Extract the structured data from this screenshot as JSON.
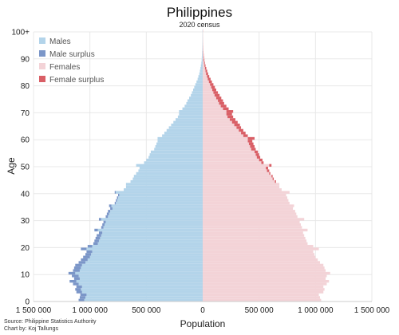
{
  "chart_data": {
    "type": "bar",
    "orientation": "horizontal-butterfly",
    "title": "Philippines",
    "subtitle": "2020 census",
    "xlabel": "Population",
    "ylabel": "Age",
    "xlim": [
      -1500000,
      1500000
    ],
    "ylim": [
      0,
      100
    ],
    "x_ticks": [
      {
        "value": -1500000,
        "label": "1 500 000"
      },
      {
        "value": -1000000,
        "label": "1 000 000"
      },
      {
        "value": -500000,
        "label": "500 000"
      },
      {
        "value": 0,
        "label": "0"
      },
      {
        "value": 500000,
        "label": "500 000"
      },
      {
        "value": 1000000,
        "label": "1 000 000"
      },
      {
        "value": 1500000,
        "label": "1 500 000"
      }
    ],
    "y_ticks": [
      {
        "value": 0,
        "label": "0"
      },
      {
        "value": 10,
        "label": "10"
      },
      {
        "value": 20,
        "label": "20"
      },
      {
        "value": 30,
        "label": "30"
      },
      {
        "value": 40,
        "label": "40"
      },
      {
        "value": 50,
        "label": "50"
      },
      {
        "value": 60,
        "label": "60"
      },
      {
        "value": 70,
        "label": "70"
      },
      {
        "value": 80,
        "label": "80"
      },
      {
        "value": 90,
        "label": "90"
      },
      {
        "value": 100,
        "label": "100+"
      }
    ],
    "grid": true,
    "legend_position": "top-left",
    "legend": [
      {
        "name": "Males",
        "color": "#b3d4ea"
      },
      {
        "name": "Male surplus",
        "color": "#7b96c8"
      },
      {
        "name": "Females",
        "color": "#f3d3d7"
      },
      {
        "name": "Female surplus",
        "color": "#d95f66"
      }
    ],
    "ages": [
      0,
      1,
      2,
      3,
      4,
      5,
      6,
      7,
      8,
      9,
      10,
      11,
      12,
      13,
      14,
      15,
      16,
      17,
      18,
      19,
      20,
      21,
      22,
      23,
      24,
      25,
      26,
      27,
      28,
      29,
      30,
      31,
      32,
      33,
      34,
      35,
      36,
      37,
      38,
      39,
      40,
      41,
      42,
      43,
      44,
      45,
      46,
      47,
      48,
      49,
      50,
      51,
      52,
      53,
      54,
      55,
      56,
      57,
      58,
      59,
      60,
      61,
      62,
      63,
      64,
      65,
      66,
      67,
      68,
      69,
      70,
      71,
      72,
      73,
      74,
      75,
      76,
      77,
      78,
      79,
      80,
      81,
      82,
      83,
      84,
      85,
      86,
      87,
      88,
      89,
      90,
      91,
      92,
      93,
      94,
      95,
      96,
      97,
      98,
      99,
      100
    ],
    "series": [
      {
        "name": "Males",
        "values": [
          1100000,
          1090000,
          1085000,
          1120000,
          1130000,
          1120000,
          1150000,
          1180000,
          1140000,
          1160000,
          1190000,
          1150000,
          1140000,
          1130000,
          1100000,
          1080000,
          1060000,
          1040000,
          1030000,
          1080000,
          1020000,
          970000,
          960000,
          950000,
          940000,
          920000,
          960000,
          900000,
          890000,
          880000,
          920000,
          860000,
          850000,
          840000,
          820000,
          830000,
          780000,
          770000,
          760000,
          750000,
          780000,
          700000,
          680000,
          680000,
          640000,
          620000,
          610000,
          590000,
          570000,
          560000,
          590000,
          520000,
          500000,
          480000,
          470000,
          460000,
          430000,
          420000,
          410000,
          400000,
          400000,
          360000,
          340000,
          320000,
          300000,
          280000,
          260000,
          240000,
          220000,
          210000,
          210000,
          180000,
          160000,
          145000,
          135000,
          120000,
          105000,
          95000,
          85000,
          75000,
          65000,
          55000,
          45000,
          38000,
          30000,
          25000,
          20000,
          16000,
          12000,
          9000,
          8000,
          6000,
          4500,
          3500,
          2500,
          2000,
          1500,
          1200,
          1000,
          800,
          2000
        ]
      },
      {
        "name": "Females",
        "values": [
          1050000,
          1040000,
          1030000,
          1070000,
          1080000,
          1070000,
          1100000,
          1120000,
          1090000,
          1100000,
          1130000,
          1090000,
          1080000,
          1070000,
          1040000,
          1020000,
          1000000,
          990000,
          980000,
          1030000,
          980000,
          930000,
          920000,
          910000,
          900000,
          890000,
          930000,
          880000,
          870000,
          860000,
          900000,
          840000,
          830000,
          820000,
          800000,
          810000,
          770000,
          760000,
          750000,
          740000,
          770000,
          700000,
          680000,
          680000,
          650000,
          630000,
          620000,
          600000,
          590000,
          580000,
          610000,
          540000,
          530000,
          510000,
          500000,
          490000,
          470000,
          460000,
          450000,
          440000,
          460000,
          400000,
          380000,
          360000,
          340000,
          330000,
          310000,
          290000,
          270000,
          260000,
          270000,
          230000,
          210000,
          190000,
          180000,
          165000,
          150000,
          135000,
          120000,
          108000,
          95000,
          82000,
          70000,
          58000,
          48000,
          40000,
          32000,
          25000,
          19000,
          15000,
          12000,
          9000,
          7000,
          5000,
          4000,
          3000,
          2200,
          1700,
          1300,
          1000,
          3000
        ]
      }
    ]
  },
  "footer": {
    "source": "Source: Philippine Statistics Authority",
    "credit": "Chart by: Koj Tallungs"
  }
}
